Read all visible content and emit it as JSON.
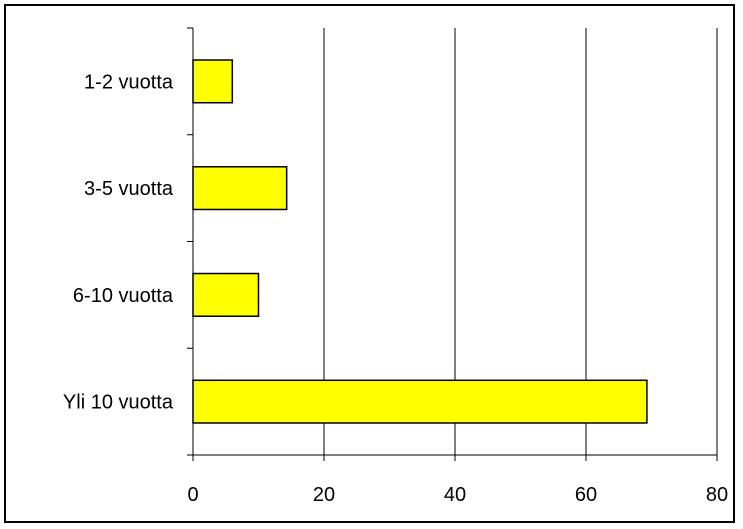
{
  "chart_data": {
    "type": "bar",
    "orientation": "horizontal",
    "categories": [
      "1-2 vuotta",
      "3-5 vuotta",
      "6-10 vuotta",
      "Yli 10 vuotta"
    ],
    "values": [
      6,
      14.3,
      10,
      69.3
    ],
    "xlim": [
      0,
      80
    ],
    "xticks": [
      0,
      20,
      40,
      60,
      80
    ],
    "tick_labels": [
      "0",
      "20",
      "40",
      "60",
      "80"
    ],
    "grid": "vertical",
    "legend": "none",
    "bar_color": "#ffff00",
    "bar_edge_color": "#000000"
  }
}
